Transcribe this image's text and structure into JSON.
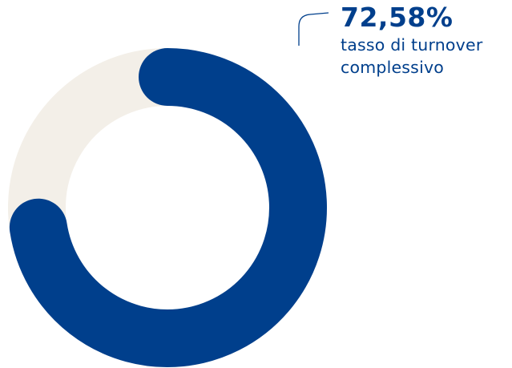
{
  "chart_data": {
    "type": "pie",
    "variant": "donut",
    "title": "",
    "categories": [
      "tasso di turnover complessivo",
      ""
    ],
    "values": [
      72.58,
      27.42
    ],
    "value_label": "72,58%",
    "annotation": {
      "value": "72,58%",
      "label_line1": "tasso di turnover",
      "label_line2": "complessivo"
    },
    "colors": {
      "value": "#003f8c",
      "remainder": "#f3efe8",
      "text": "#003f8c"
    },
    "legend": "none",
    "start": "top",
    "direction": "clockwise"
  }
}
